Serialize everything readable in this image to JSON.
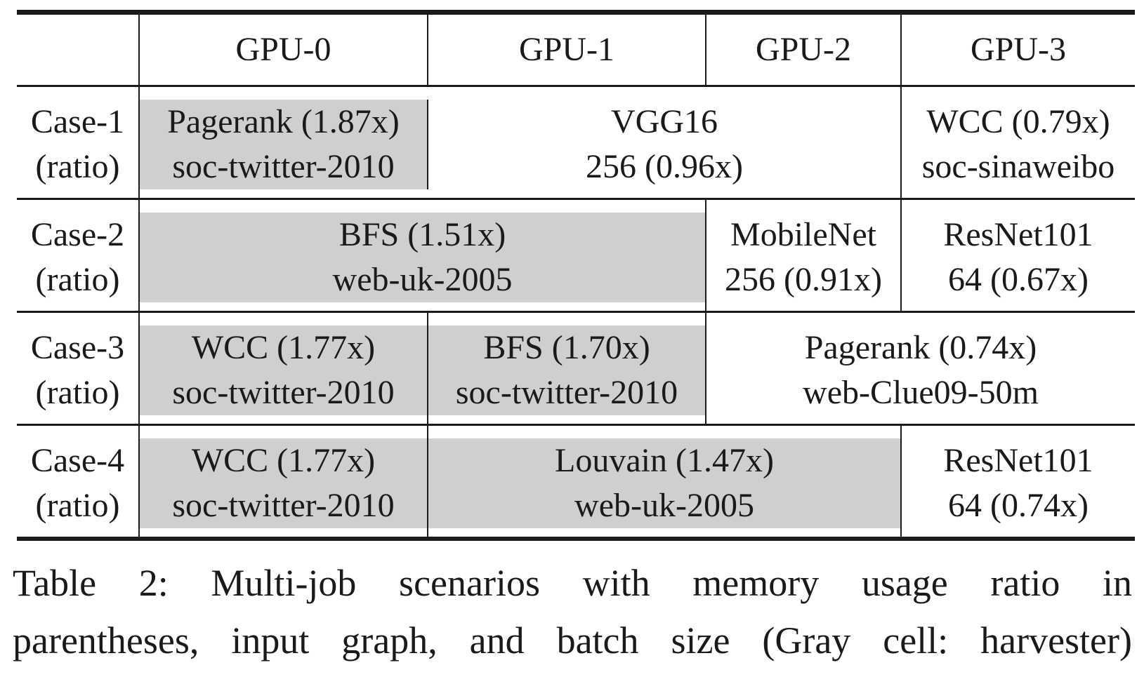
{
  "table": {
    "headers": [
      "",
      "GPU-0",
      "GPU-1",
      "GPU-2",
      "GPU-3"
    ],
    "rows": [
      {
        "case": "Case-1",
        "ratio_label": "(ratio)",
        "cells": [
          {
            "line1": "Pagerank (1.87x)",
            "line2": "soc-twitter-2010",
            "gray": true
          },
          {
            "line1": "VGG16",
            "line2": "256 (0.96x)",
            "gray": false
          },
          {
            "line1": "WCC (0.79x)",
            "line2": "soc-sinaweibo",
            "gray": false
          }
        ]
      },
      {
        "case": "Case-2",
        "ratio_label": "(ratio)",
        "cells": [
          {
            "line1": "BFS (1.51x)",
            "line2": "web-uk-2005",
            "gray": true
          },
          {
            "line1": "MobileNet",
            "line2": "256 (0.91x)",
            "gray": false
          },
          {
            "line1": "ResNet101",
            "line2": "64 (0.67x)",
            "gray": false
          }
        ]
      },
      {
        "case": "Case-3",
        "ratio_label": "(ratio)",
        "cells": [
          {
            "line1": "WCC (1.77x)",
            "line2": "soc-twitter-2010",
            "gray": true
          },
          {
            "line1": "BFS (1.70x)",
            "line2": "soc-twitter-2010",
            "gray": true
          },
          {
            "line1": "Pagerank (0.74x)",
            "line2": "web-Clue09-50m",
            "gray": false
          }
        ]
      },
      {
        "case": "Case-4",
        "ratio_label": "(ratio)",
        "cells": [
          {
            "line1": "WCC (1.77x)",
            "line2": "soc-twitter-2010",
            "gray": true
          },
          {
            "line1": "Louvain (1.47x)",
            "line2": "web-uk-2005",
            "gray": true
          },
          {
            "line1": "ResNet101",
            "line2": "64 (0.74x)",
            "gray": false
          }
        ]
      }
    ]
  },
  "caption": {
    "line1": "Table 2: Multi-job scenarios with memory usage ratio in",
    "line2": "parentheses, input graph, and batch size (Gray cell: harvester)"
  },
  "colors": {
    "harvester_gray": "#cfcfcf",
    "rule": "#1a1a1a"
  }
}
